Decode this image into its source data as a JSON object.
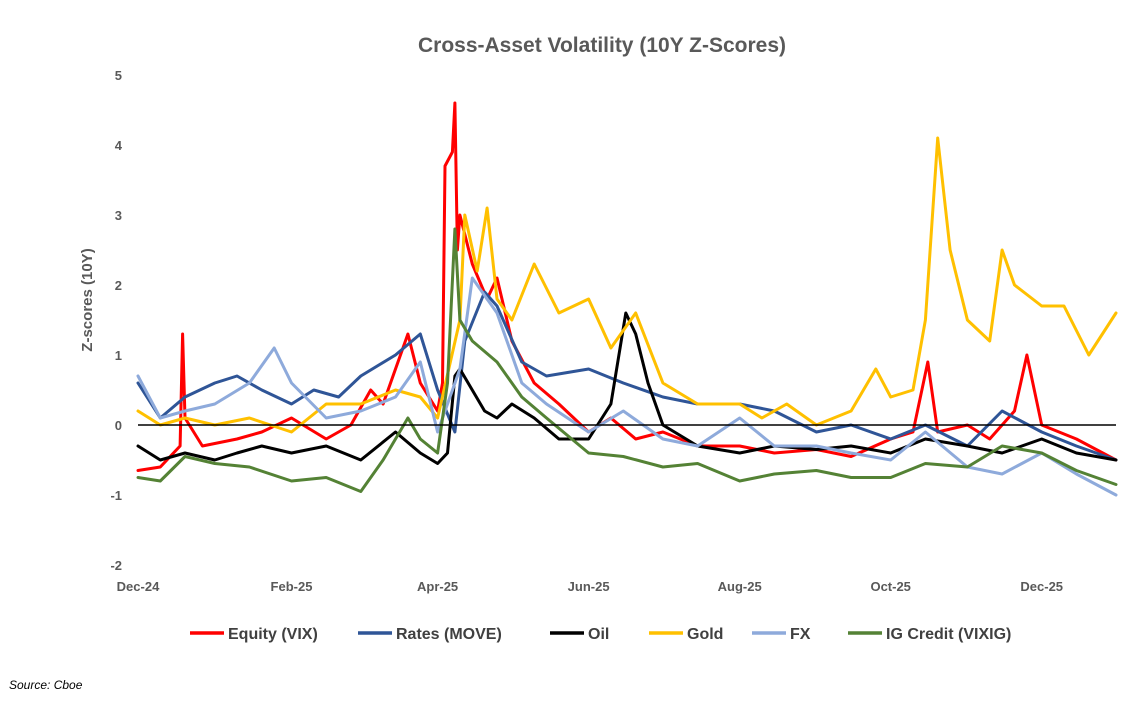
{
  "chart_data": {
    "type": "line",
    "title": "Cross-Asset Volatility (10Y Z-Scores)",
    "xlabel": "",
    "ylabel": "Z-scores (10Y)",
    "ylim": [
      -2,
      5
    ],
    "yticks": [
      -2,
      -1,
      0,
      1,
      2,
      3,
      4,
      5
    ],
    "xlim": [
      "2024-12-01",
      "2025-12-31"
    ],
    "xticks": [
      {
        "date": "2024-12-01",
        "label": "Dec-24"
      },
      {
        "date": "2025-02-01",
        "label": "Feb-25"
      },
      {
        "date": "2025-04-01",
        "label": "Apr-25"
      },
      {
        "date": "2025-06-01",
        "label": "Jun-25"
      },
      {
        "date": "2025-08-01",
        "label": "Aug-25"
      },
      {
        "date": "2025-10-01",
        "label": "Oct-25"
      },
      {
        "date": "2025-12-01",
        "label": "Dec-25"
      }
    ],
    "grid": false,
    "legend_position": "bottom",
    "series": [
      {
        "name": "Equity (VIX)",
        "color": "#ff0000",
        "x": [
          "2024-12-01",
          "2024-12-10",
          "2024-12-18",
          "2024-12-19",
          "2024-12-20",
          "2024-12-27",
          "2025-01-10",
          "2025-01-20",
          "2025-02-01",
          "2025-02-15",
          "2025-02-25",
          "2025-03-05",
          "2025-03-10",
          "2025-03-20",
          "2025-03-25",
          "2025-04-01",
          "2025-04-03",
          "2025-04-04",
          "2025-04-07",
          "2025-04-08",
          "2025-04-09",
          "2025-04-10",
          "2025-04-15",
          "2025-04-21",
          "2025-04-25",
          "2025-05-01",
          "2025-05-10",
          "2025-05-20",
          "2025-06-01",
          "2025-06-10",
          "2025-06-20",
          "2025-07-01",
          "2025-07-15",
          "2025-08-01",
          "2025-08-15",
          "2025-09-01",
          "2025-09-15",
          "2025-10-01",
          "2025-10-10",
          "2025-10-16",
          "2025-10-20",
          "2025-11-01",
          "2025-11-10",
          "2025-11-20",
          "2025-11-25",
          "2025-12-01",
          "2025-12-15",
          "2025-12-31"
        ],
        "values": [
          -0.65,
          -0.6,
          -0.3,
          1.3,
          0.1,
          -0.3,
          -0.2,
          -0.1,
          0.1,
          -0.2,
          0.0,
          0.5,
          0.3,
          1.3,
          0.6,
          0.2,
          0.6,
          3.7,
          3.9,
          4.6,
          2.5,
          3.0,
          2.3,
          1.8,
          2.1,
          1.2,
          0.6,
          0.3,
          -0.1,
          0.1,
          -0.2,
          -0.1,
          -0.3,
          -0.3,
          -0.4,
          -0.35,
          -0.45,
          -0.2,
          -0.1,
          0.9,
          -0.1,
          0.0,
          -0.2,
          0.2,
          1.0,
          0.0,
          -0.2,
          -0.5
        ]
      },
      {
        "name": "Rates (MOVE)",
        "color": "#2f5597",
        "x": [
          "2024-12-01",
          "2024-12-10",
          "2024-12-20",
          "2025-01-01",
          "2025-01-10",
          "2025-01-20",
          "2025-02-01",
          "2025-02-10",
          "2025-02-20",
          "2025-03-01",
          "2025-03-15",
          "2025-03-25",
          "2025-04-01",
          "2025-04-08",
          "2025-04-12",
          "2025-04-20",
          "2025-04-25",
          "2025-05-05",
          "2025-05-15",
          "2025-06-01",
          "2025-06-15",
          "2025-07-01",
          "2025-07-15",
          "2025-08-01",
          "2025-08-15",
          "2025-09-01",
          "2025-09-15",
          "2025-10-01",
          "2025-10-15",
          "2025-11-01",
          "2025-11-15",
          "2025-12-01",
          "2025-12-15",
          "2025-12-31"
        ],
        "values": [
          0.6,
          0.1,
          0.4,
          0.6,
          0.7,
          0.5,
          0.3,
          0.5,
          0.4,
          0.7,
          1.0,
          1.3,
          0.5,
          -0.1,
          1.2,
          1.9,
          1.7,
          0.9,
          0.7,
          0.8,
          0.6,
          0.4,
          0.3,
          0.3,
          0.2,
          -0.1,
          0.0,
          -0.2,
          0.0,
          -0.3,
          0.2,
          -0.1,
          -0.3,
          -0.5
        ]
      },
      {
        "name": "Oil",
        "color": "#000000",
        "x": [
          "2024-12-01",
          "2024-12-10",
          "2024-12-20",
          "2025-01-01",
          "2025-01-10",
          "2025-01-20",
          "2025-02-01",
          "2025-02-15",
          "2025-03-01",
          "2025-03-15",
          "2025-03-25",
          "2025-04-01",
          "2025-04-05",
          "2025-04-08",
          "2025-04-10",
          "2025-04-20",
          "2025-04-25",
          "2025-05-01",
          "2025-05-10",
          "2025-05-20",
          "2025-06-01",
          "2025-06-10",
          "2025-06-16",
          "2025-06-20",
          "2025-06-25",
          "2025-07-01",
          "2025-07-15",
          "2025-08-01",
          "2025-08-15",
          "2025-09-01",
          "2025-09-15",
          "2025-10-01",
          "2025-10-15",
          "2025-11-01",
          "2025-11-15",
          "2025-12-01",
          "2025-12-15",
          "2025-12-31"
        ],
        "values": [
          -0.3,
          -0.5,
          -0.4,
          -0.5,
          -0.4,
          -0.3,
          -0.4,
          -0.3,
          -0.5,
          -0.1,
          -0.4,
          -0.55,
          -0.4,
          0.7,
          0.8,
          0.2,
          0.1,
          0.3,
          0.1,
          -0.2,
          -0.2,
          0.3,
          1.6,
          1.3,
          0.6,
          0.0,
          -0.3,
          -0.4,
          -0.3,
          -0.35,
          -0.3,
          -0.4,
          -0.2,
          -0.3,
          -0.4,
          -0.2,
          -0.4,
          -0.5
        ]
      },
      {
        "name": "Gold",
        "color": "#ffc000",
        "x": [
          "2024-12-01",
          "2024-12-10",
          "2024-12-20",
          "2025-01-01",
          "2025-01-15",
          "2025-02-01",
          "2025-02-15",
          "2025-03-01",
          "2025-03-15",
          "2025-03-25",
          "2025-04-01",
          "2025-04-10",
          "2025-04-12",
          "2025-04-17",
          "2025-04-21",
          "2025-04-25",
          "2025-05-01",
          "2025-05-10",
          "2025-05-20",
          "2025-06-01",
          "2025-06-10",
          "2025-06-20",
          "2025-07-01",
          "2025-07-15",
          "2025-08-01",
          "2025-08-10",
          "2025-08-20",
          "2025-09-01",
          "2025-09-15",
          "2025-09-25",
          "2025-10-01",
          "2025-10-10",
          "2025-10-15",
          "2025-10-20",
          "2025-10-25",
          "2025-11-01",
          "2025-11-10",
          "2025-11-15",
          "2025-11-20",
          "2025-12-01",
          "2025-12-10",
          "2025-12-20",
          "2025-12-31"
        ],
        "values": [
          0.2,
          0.0,
          0.1,
          0.0,
          0.1,
          -0.1,
          0.3,
          0.3,
          0.5,
          0.4,
          0.1,
          1.5,
          3.0,
          2.2,
          3.1,
          1.8,
          1.5,
          2.3,
          1.6,
          1.8,
          1.1,
          1.6,
          0.6,
          0.3,
          0.3,
          0.1,
          0.3,
          0.0,
          0.2,
          0.8,
          0.4,
          0.5,
          1.5,
          4.1,
          2.5,
          1.5,
          1.2,
          2.5,
          2.0,
          1.7,
          1.7,
          1.0,
          1.6
        ]
      },
      {
        "name": "FX",
        "color": "#8eaadb",
        "x": [
          "2024-12-01",
          "2024-12-10",
          "2024-12-20",
          "2025-01-01",
          "2025-01-15",
          "2025-01-25",
          "2025-02-01",
          "2025-02-15",
          "2025-03-01",
          "2025-03-15",
          "2025-03-25",
          "2025-04-01",
          "2025-04-10",
          "2025-04-15",
          "2025-04-25",
          "2025-05-05",
          "2025-05-15",
          "2025-06-01",
          "2025-06-15",
          "2025-07-01",
          "2025-07-15",
          "2025-08-01",
          "2025-08-15",
          "2025-09-01",
          "2025-09-15",
          "2025-10-01",
          "2025-10-15",
          "2025-11-01",
          "2025-11-15",
          "2025-12-01",
          "2025-12-15",
          "2025-12-31"
        ],
        "values": [
          0.7,
          0.1,
          0.2,
          0.3,
          0.6,
          1.1,
          0.6,
          0.1,
          0.2,
          0.4,
          0.9,
          -0.1,
          0.8,
          2.1,
          1.6,
          0.6,
          0.3,
          -0.1,
          0.2,
          -0.2,
          -0.3,
          0.1,
          -0.3,
          -0.3,
          -0.4,
          -0.5,
          -0.1,
          -0.6,
          -0.7,
          -0.4,
          -0.7,
          -1.0
        ]
      },
      {
        "name": "IG Credit (VIXIG)",
        "color": "#548235",
        "x": [
          "2024-12-01",
          "2024-12-10",
          "2024-12-20",
          "2025-01-01",
          "2025-01-15",
          "2025-02-01",
          "2025-02-15",
          "2025-03-01",
          "2025-03-10",
          "2025-03-20",
          "2025-03-25",
          "2025-04-01",
          "2025-04-05",
          "2025-04-08",
          "2025-04-10",
          "2025-04-15",
          "2025-04-25",
          "2025-05-05",
          "2025-05-15",
          "2025-06-01",
          "2025-06-15",
          "2025-07-01",
          "2025-07-15",
          "2025-08-01",
          "2025-08-15",
          "2025-09-01",
          "2025-09-15",
          "2025-10-01",
          "2025-10-15",
          "2025-11-01",
          "2025-11-15",
          "2025-12-01",
          "2025-12-15",
          "2025-12-31"
        ],
        "values": [
          -0.75,
          -0.8,
          -0.45,
          -0.55,
          -0.6,
          -0.8,
          -0.75,
          -0.95,
          -0.5,
          0.1,
          -0.2,
          -0.4,
          0.6,
          2.8,
          1.5,
          1.2,
          0.9,
          0.4,
          0.1,
          -0.4,
          -0.45,
          -0.6,
          -0.55,
          -0.8,
          -0.7,
          -0.65,
          -0.75,
          -0.75,
          -0.55,
          -0.6,
          -0.3,
          -0.4,
          -0.65,
          -0.85
        ]
      }
    ]
  },
  "source": "Source: Cboe"
}
